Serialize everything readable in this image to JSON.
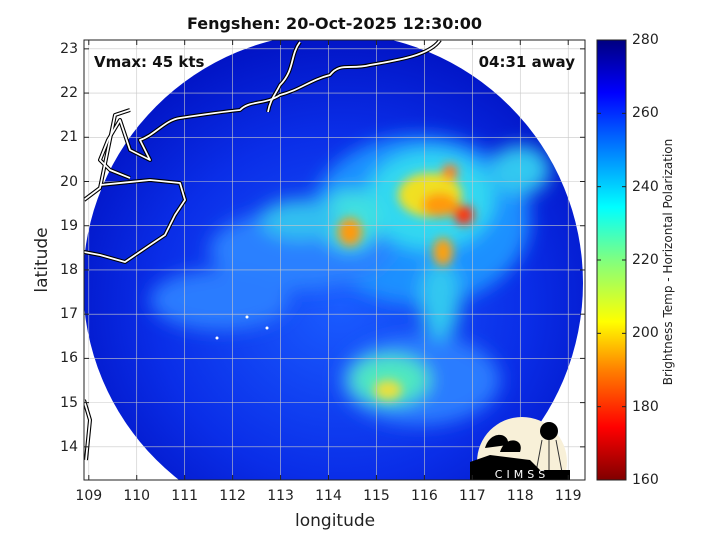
{
  "title": "Fengshen: 20-Oct-2025 12:30:00",
  "annotations": {
    "vmax": "Vmax: 45 kts",
    "time_away": "04:31 away"
  },
  "axes": {
    "xlabel": "longitude",
    "ylabel": "latitude",
    "xticks": [
      "109",
      "110",
      "111",
      "112",
      "113",
      "114",
      "115",
      "116",
      "117",
      "118",
      "119"
    ],
    "yticks": [
      "14",
      "15",
      "16",
      "17",
      "18",
      "19",
      "20",
      "21",
      "22",
      "23"
    ],
    "xlim": [
      108.9,
      119.35
    ],
    "ylim": [
      13.25,
      23.2
    ],
    "grid": true
  },
  "colorbar": {
    "label": "Brightness Temp - Horizontal Polarization",
    "ticks": [
      "160",
      "180",
      "200",
      "220",
      "240",
      "260",
      "280"
    ],
    "range": [
      160,
      280
    ],
    "colormap": [
      "#800000",
      "#ff0000",
      "#ff8000",
      "#ffff00",
      "#80ff80",
      "#00ffff",
      "#0080ff",
      "#0000ff",
      "#000080"
    ]
  },
  "logo": {
    "text": "CIMSS"
  }
}
